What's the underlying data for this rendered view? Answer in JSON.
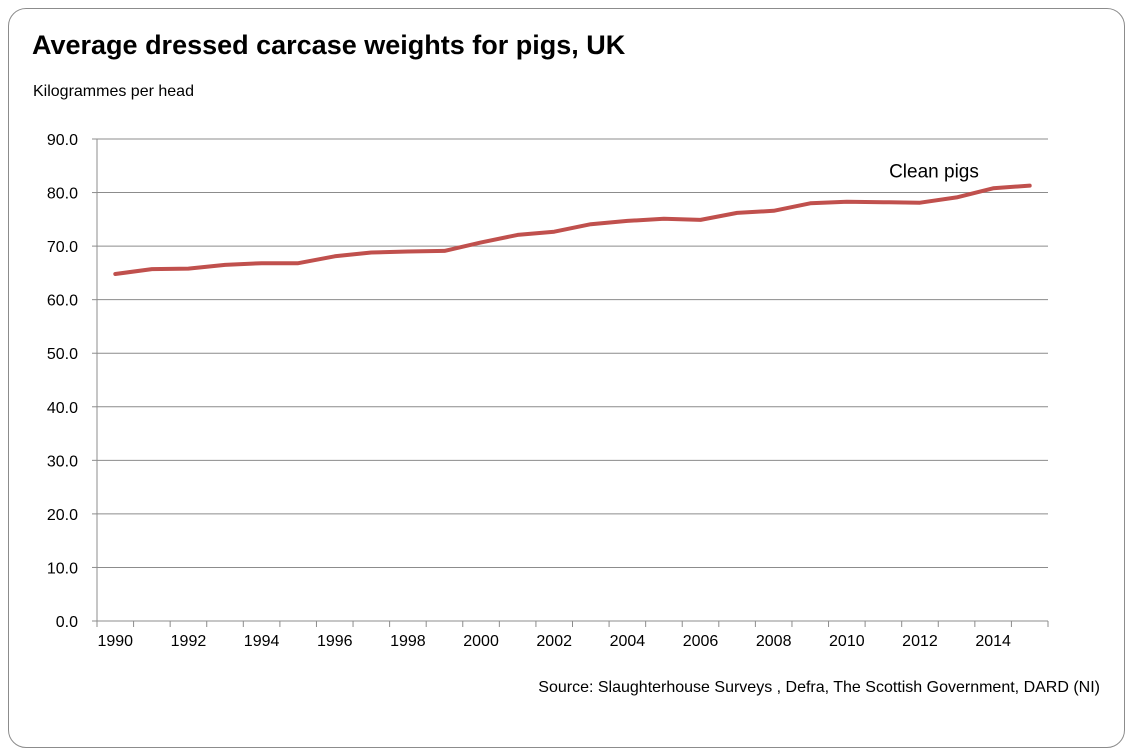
{
  "chart_data": {
    "type": "line",
    "title": "Average dressed carcase weights for pigs, UK",
    "ylabel": "Kilogrammes per head",
    "source": "Source: Slaughterhouse Surveys , Defra, The Scottish Government, DARD (NI)",
    "ylim": [
      0,
      90
    ],
    "yticks": [
      "0.0",
      "10.0",
      "20.0",
      "30.0",
      "40.0",
      "50.0",
      "60.0",
      "70.0",
      "80.0",
      "90.0"
    ],
    "xticks": [
      "1990",
      "1992",
      "1994",
      "1996",
      "1998",
      "2000",
      "2002",
      "2004",
      "2006",
      "2008",
      "2010",
      "2012",
      "2014"
    ],
    "x": [
      1990,
      1991,
      1992,
      1993,
      1994,
      1995,
      1996,
      1997,
      1998,
      1999,
      2000,
      2001,
      2002,
      2003,
      2004,
      2005,
      2006,
      2007,
      2008,
      2009,
      2010,
      2011,
      2012,
      2013,
      2014,
      2015
    ],
    "grid": true,
    "series": [
      {
        "name": "Clean pigs",
        "color": "#c0504d",
        "values": [
          64.8,
          65.7,
          65.8,
          66.5,
          66.8,
          66.8,
          68.1,
          68.8,
          69.0,
          69.1,
          70.7,
          72.1,
          72.7,
          74.1,
          74.7,
          75.1,
          74.9,
          76.2,
          76.6,
          78.0,
          78.3,
          78.2,
          78.1,
          79.1,
          80.8,
          81.3
        ]
      }
    ]
  }
}
